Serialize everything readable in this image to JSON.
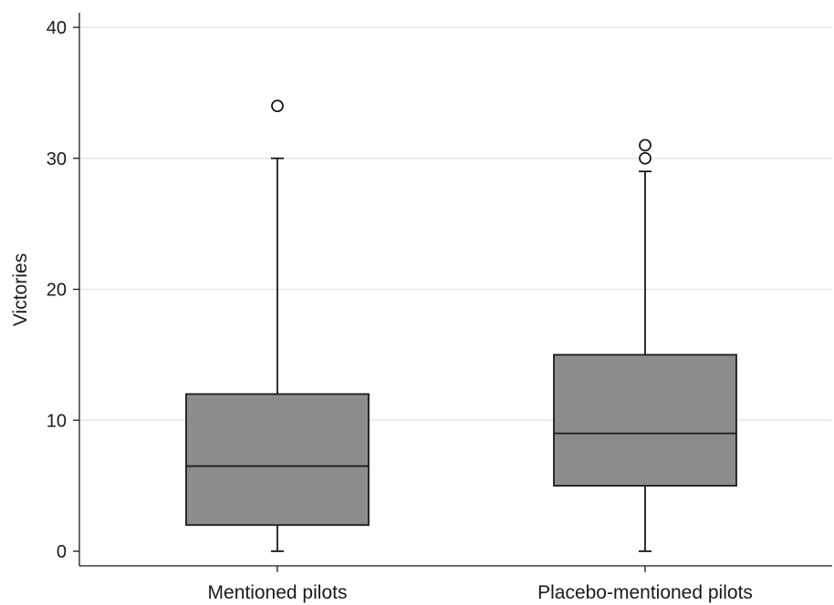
{
  "chart_data": {
    "type": "box",
    "ylabel": "Victories",
    "ylim": [
      0,
      40
    ],
    "yticks": [
      0,
      10,
      20,
      30,
      40
    ],
    "grid": true,
    "box_color": "#8c8c8c",
    "line_color": "#1a1a1a",
    "grid_color": "#e6e6e6",
    "categories": [
      "Mentioned pilots",
      "Placebo-mentioned pilots"
    ],
    "boxes": [
      {
        "category": "Mentioned pilots",
        "whisker_low": 0,
        "q1": 2,
        "median": 6.5,
        "q3": 12,
        "whisker_high": 30,
        "outliers": [
          34
        ]
      },
      {
        "category": "Placebo-mentioned pilots",
        "whisker_low": 0,
        "q1": 5,
        "median": 9,
        "q3": 15,
        "whisker_high": 29,
        "outliers": [
          30,
          31
        ]
      }
    ]
  }
}
